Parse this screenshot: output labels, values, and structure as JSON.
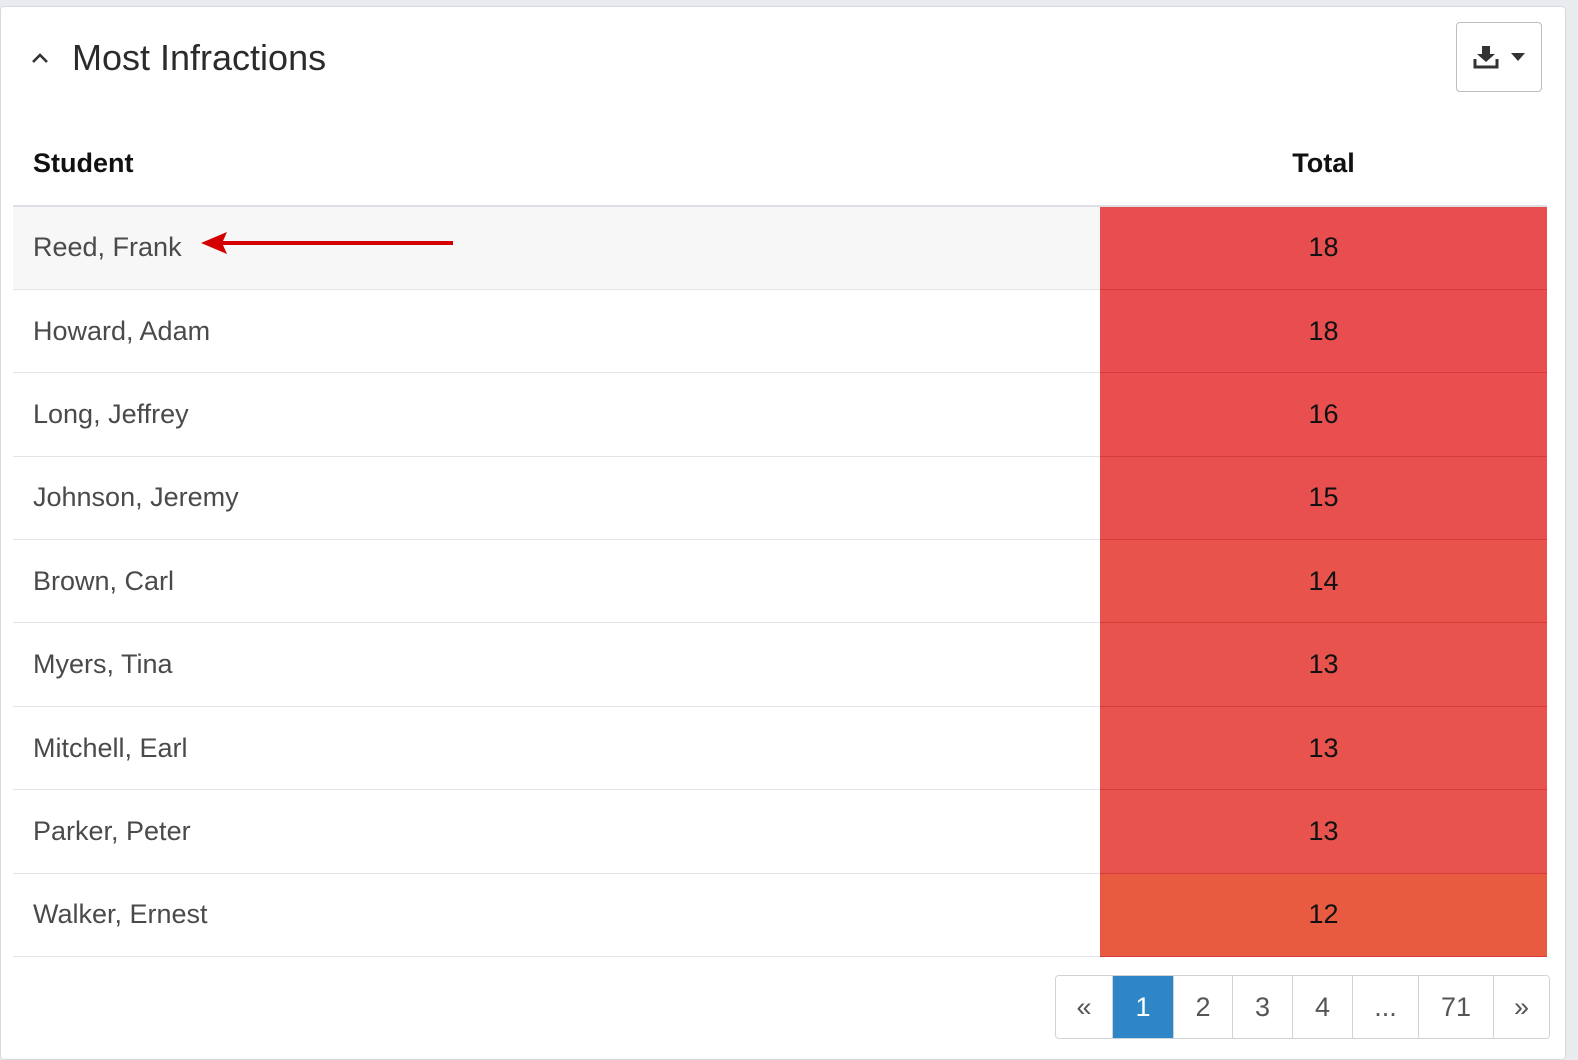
{
  "panel": {
    "title": "Most Infractions"
  },
  "table": {
    "headers": {
      "student": "Student",
      "total": "Total"
    },
    "rows": [
      {
        "student": "Reed, Frank",
        "total": "18",
        "color": "#e84e4f"
      },
      {
        "student": "Howard, Adam",
        "total": "18",
        "color": "#e84e4f"
      },
      {
        "student": "Long, Jeffrey",
        "total": "16",
        "color": "#e84f4e"
      },
      {
        "student": "Johnson, Jeremy",
        "total": "15",
        "color": "#e85050"
      },
      {
        "student": "Brown, Carl",
        "total": "14",
        "color": "#e8534b"
      },
      {
        "student": "Myers, Tina",
        "total": "13",
        "color": "#e8534d"
      },
      {
        "student": "Mitchell, Earl",
        "total": "13",
        "color": "#e8534d"
      },
      {
        "student": "Parker, Peter",
        "total": "13",
        "color": "#e8534d"
      },
      {
        "student": "Walker, Ernest",
        "total": "12",
        "color": "#e85b40"
      }
    ]
  },
  "pagination": {
    "items": [
      {
        "label": "«",
        "name": "page-prev"
      },
      {
        "label": "1",
        "name": "page-1",
        "active": true
      },
      {
        "label": "2",
        "name": "page-2"
      },
      {
        "label": "3",
        "name": "page-3"
      },
      {
        "label": "4",
        "name": "page-4"
      },
      {
        "label": "...",
        "name": "page-ellipsis"
      },
      {
        "label": "71",
        "name": "page-71"
      },
      {
        "label": "»",
        "name": "page-next"
      }
    ]
  },
  "icons": {
    "collapse": "chevron-up-icon",
    "download": "download-icon",
    "dropdown": "caret-down-icon",
    "annotation": "arrow-left-annotation"
  },
  "colors": {
    "accent": "#2f86c6",
    "annotation_arrow": "#d40000"
  }
}
